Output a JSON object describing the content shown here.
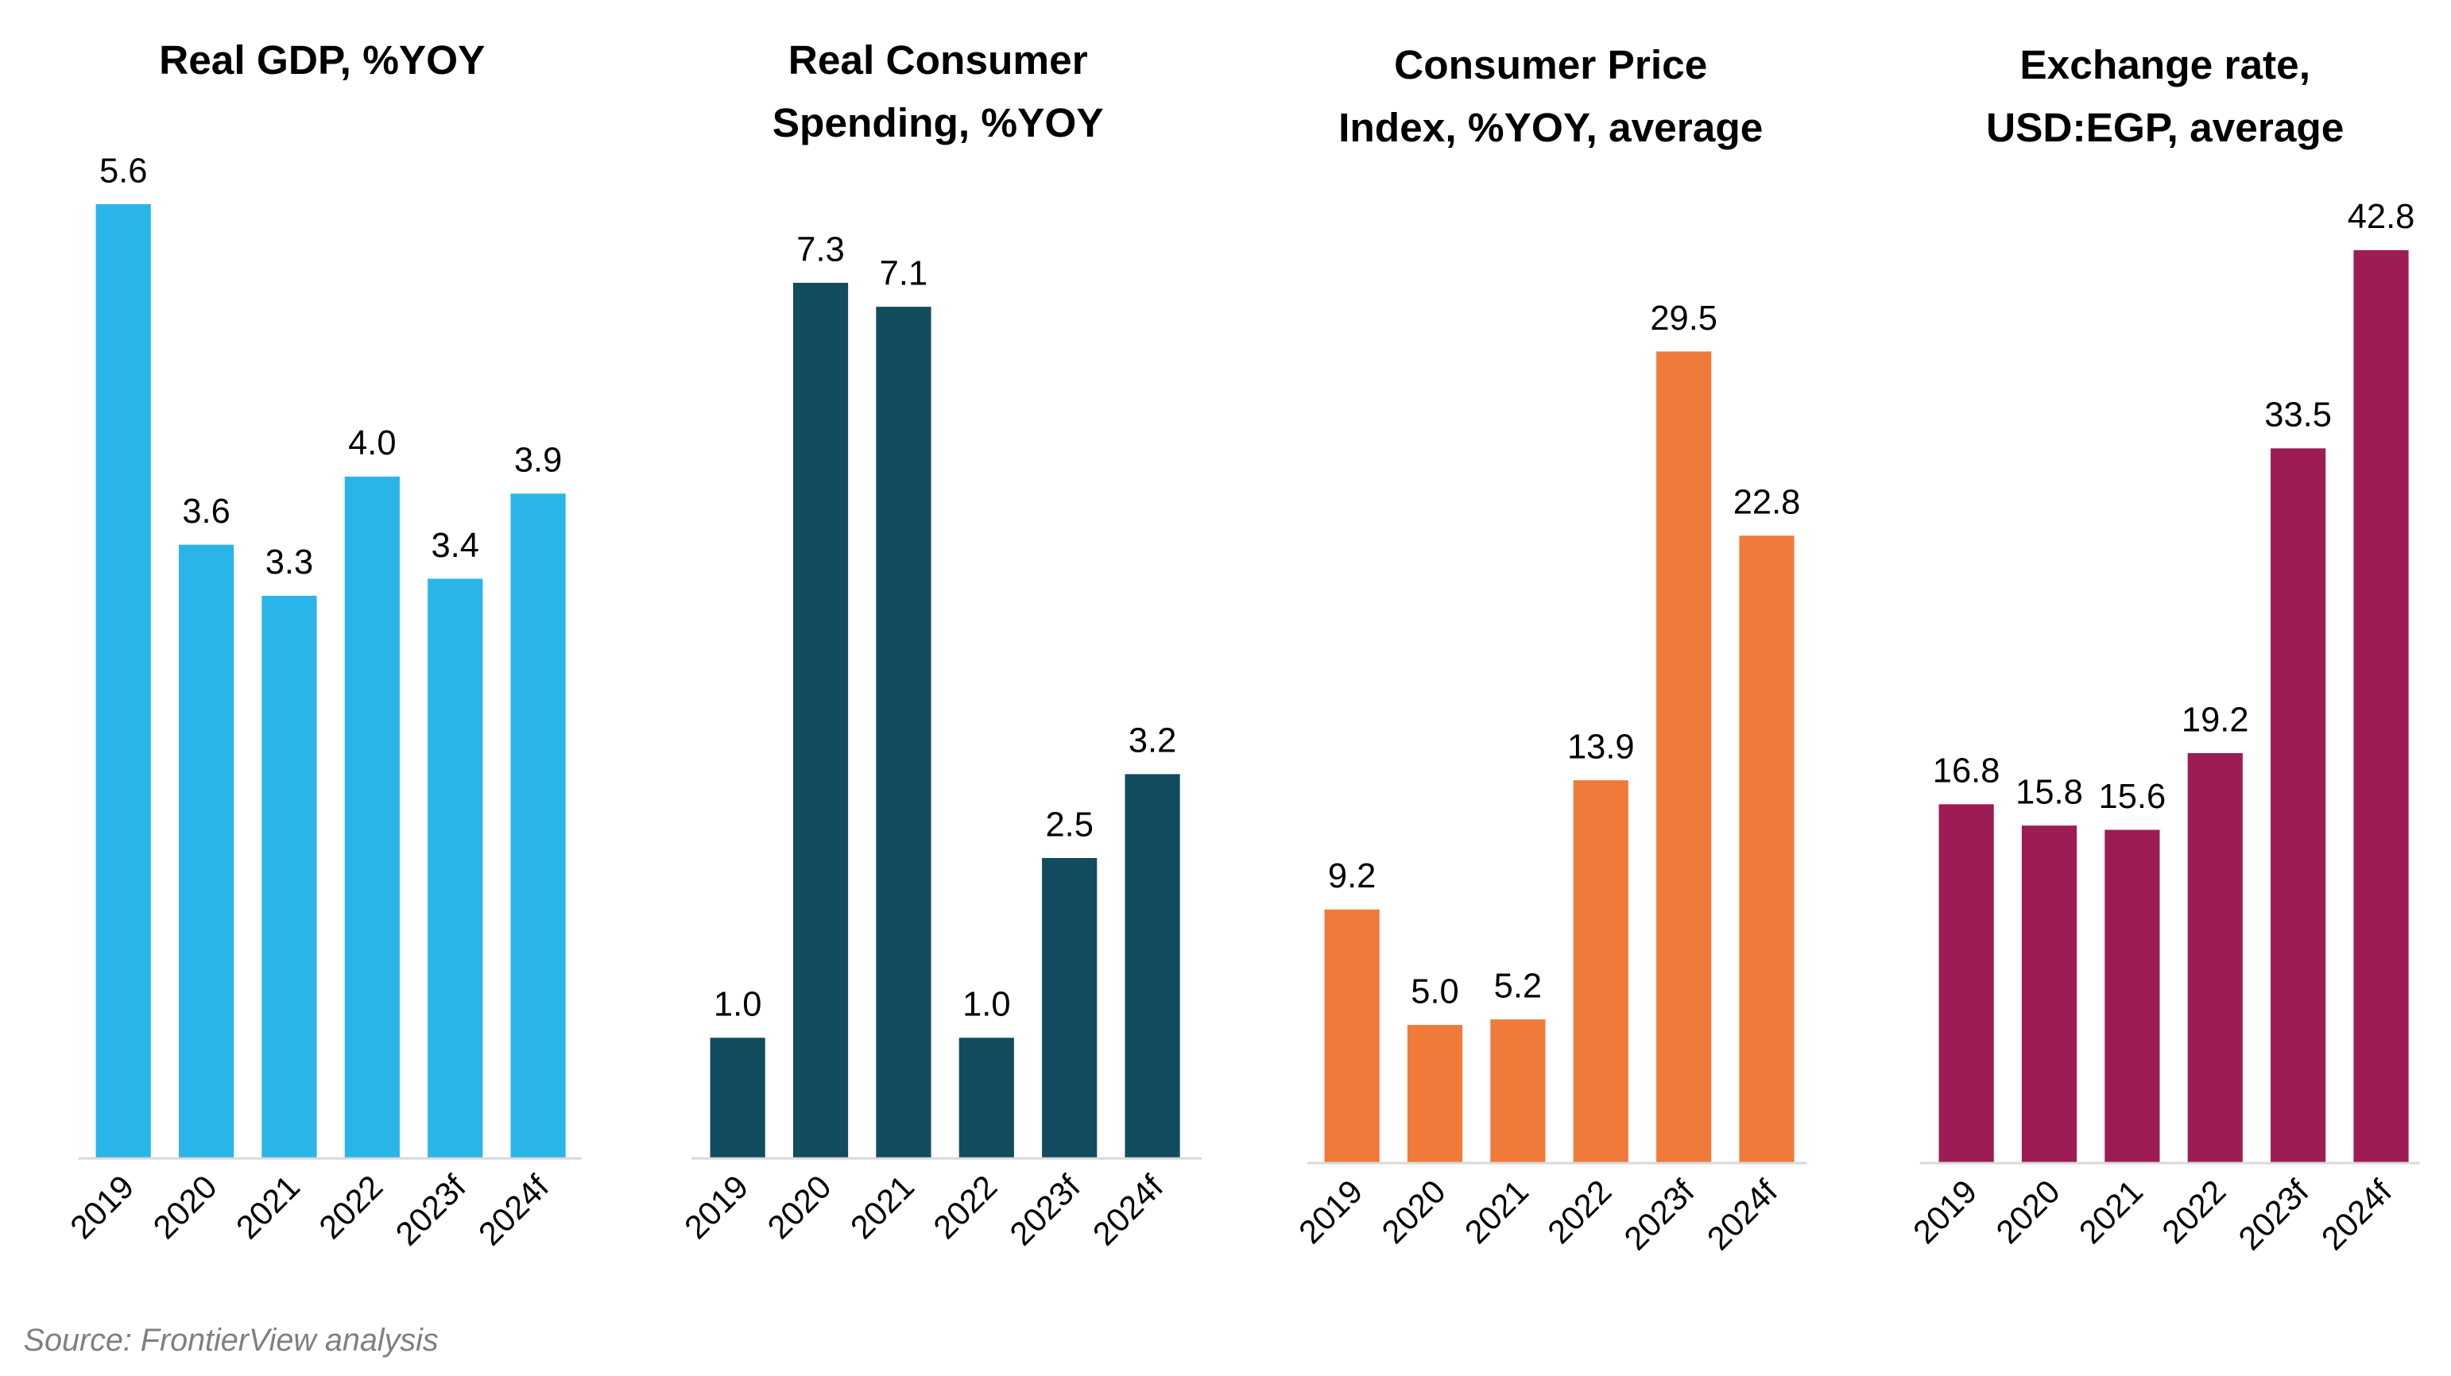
{
  "source": "Source: FrontierView analysis",
  "chart_data": [
    {
      "type": "bar",
      "title": [
        "Real GDP, %YOY"
      ],
      "categories": [
        "2019",
        "2020",
        "2021",
        "2022",
        "2023f",
        "2024f"
      ],
      "values": [
        5.6,
        3.6,
        3.3,
        4.0,
        3.4,
        3.9
      ],
      "labels": [
        "5.6",
        "3.6",
        "3.3",
        "4.0",
        "3.4",
        "3.9"
      ],
      "color": "#29B5E8",
      "grid": false
    },
    {
      "type": "bar",
      "title": [
        "Real Consumer",
        "Spending, %YOY"
      ],
      "categories": [
        "2019",
        "2020",
        "2021",
        "2022",
        "2023f",
        "2024f"
      ],
      "values": [
        1.0,
        7.3,
        7.1,
        1.0,
        2.5,
        3.2
      ],
      "labels": [
        "1.0",
        "7.3",
        "7.1",
        "1.0",
        "2.5",
        "3.2"
      ],
      "color": "#134B5F",
      "grid": false
    },
    {
      "type": "bar",
      "title": [
        "Consumer Price",
        "Index, %YOY, average"
      ],
      "categories": [
        "2019",
        "2020",
        "2021",
        "2022",
        "2023f",
        "2024f"
      ],
      "values": [
        9.2,
        5.0,
        5.2,
        13.9,
        29.5,
        22.8
      ],
      "labels": [
        "9.2",
        "5.0",
        "5.2",
        "13.9",
        "29.5",
        "22.8"
      ],
      "color": "#F07A3A",
      "grid": false
    },
    {
      "type": "bar",
      "title": [
        "Exchange rate,",
        "USD:EGP, average"
      ],
      "categories": [
        "2019",
        "2020",
        "2021",
        "2022",
        "2023f",
        "2024f"
      ],
      "values": [
        16.8,
        15.8,
        15.6,
        19.2,
        33.5,
        42.8
      ],
      "labels": [
        "16.8",
        "15.8",
        "15.6",
        "19.2",
        "33.5",
        "42.8"
      ],
      "color": "#9E1C55",
      "grid": false
    }
  ]
}
